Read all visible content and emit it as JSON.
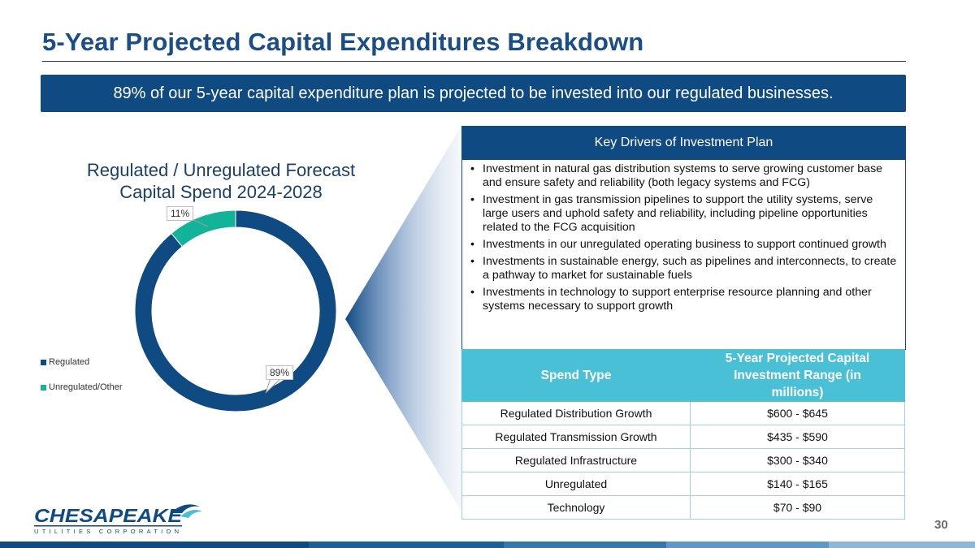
{
  "title": "5-Year Projected Capital Expenditures Breakdown",
  "banner": "89% of our 5-year capital expenditure plan is projected to be invested into our regulated businesses.",
  "chart_data": {
    "type": "pie",
    "variant": "donut",
    "title_line1": "Regulated / Unregulated Forecast",
    "title_line2": "Capital Spend 2024-2028",
    "categories": [
      "Regulated",
      "Unregulated/Other"
    ],
    "values": [
      89,
      11
    ],
    "labels": [
      "89%",
      "11%"
    ],
    "colors": [
      "#0f4a82",
      "#13b39a"
    ],
    "legend_position": "bottom-left"
  },
  "drivers": {
    "heading": "Key Drivers of Investment Plan",
    "items": [
      "Investment in natural gas distribution systems to serve growing customer base and ensure safety and reliability (both legacy systems and FCG)",
      "Investment in gas transmission pipelines to support the utility systems, serve large users and uphold safety and reliability, including pipeline opportunities related to the FCG acquisition",
      "Investments in our unregulated operating business to support continued growth",
      "Investments in sustainable energy, such as pipelines and interconnects, to create a pathway to market for sustainable fuels",
      "Investments in technology to support enterprise resource planning and other systems necessary to support growth"
    ]
  },
  "table": {
    "headers": [
      "Spend Type",
      "5-Year Projected Capital Investment Range (in millions)"
    ],
    "rows": [
      [
        "Regulated Distribution Growth",
        "$600 - $645"
      ],
      [
        "Regulated Transmission Growth",
        "$435 - $590"
      ],
      [
        "Regulated Infrastructure",
        "$300 - $340"
      ],
      [
        "Unregulated",
        "$140 - $165"
      ],
      [
        "Technology",
        "$70 - $90"
      ]
    ]
  },
  "logo": {
    "name": "CHESAPEAKE",
    "subtitle": "UTILITIES CORPORATION",
    "icon": "bird-swoosh-icon"
  },
  "page_number": "30"
}
